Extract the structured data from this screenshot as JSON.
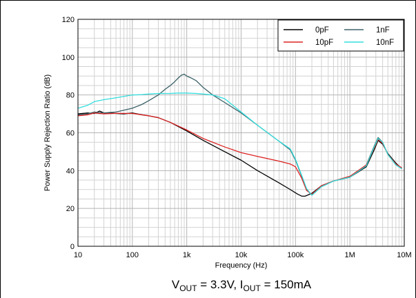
{
  "chart_data": {
    "type": "line",
    "x_scale": "log",
    "xlabel": "Frequency (Hz)",
    "ylabel": "Power Supply Rejection Ratio (dB)",
    "xlim": [
      10,
      10000000
    ],
    "ylim": [
      0,
      120
    ],
    "x_ticks": [
      {
        "value": 10,
        "label": "10"
      },
      {
        "value": 100,
        "label": "100"
      },
      {
        "value": 1000,
        "label": "1k"
      },
      {
        "value": 10000,
        "label": "10k"
      },
      {
        "value": 100000,
        "label": "100k"
      },
      {
        "value": 1000000,
        "label": "1M"
      },
      {
        "value": 10000000,
        "label": "10M"
      }
    ],
    "y_ticks": [
      0,
      20,
      40,
      60,
      80,
      100,
      120
    ],
    "grid": true,
    "legend_position": "top-right",
    "series": [
      {
        "name": "0pF",
        "color": "#000000",
        "x": [
          10,
          15,
          20,
          25,
          30,
          40,
          50,
          70,
          100,
          150,
          200,
          300,
          500,
          1000,
          2000,
          5000,
          10000,
          20000,
          50000,
          80000,
          110000,
          130000,
          150000,
          200000,
          300000,
          500000,
          1000000,
          2000000,
          2800000,
          3300000,
          4000000,
          5000000,
          7000000,
          9000000
        ],
        "y": [
          70,
          70.5,
          70.2,
          71.5,
          70.5,
          70.5,
          70.2,
          70,
          70.5,
          69.5,
          69,
          68,
          65.5,
          61,
          56,
          50,
          45.5,
          40,
          33.5,
          30,
          27.5,
          26.5,
          26.5,
          28,
          32,
          34.5,
          36.5,
          42,
          51,
          56,
          54,
          49,
          44,
          41
        ]
      },
      {
        "name": "1nF",
        "color": "#3d6268",
        "x": [
          10,
          15,
          20,
          30,
          50,
          100,
          150,
          200,
          300,
          400,
          500,
          600,
          700,
          800,
          900,
          1000,
          1200,
          1500,
          2000,
          3000,
          5000,
          10000,
          20000,
          50000,
          80000,
          100000,
          130000,
          160000,
          200000,
          300000,
          500000,
          1000000,
          2000000,
          2800000,
          3300000,
          4000000,
          5000000,
          7000000,
          9000000
        ],
        "y": [
          69.5,
          70,
          71,
          70.5,
          71,
          73,
          75,
          77,
          80,
          83,
          85,
          87,
          89,
          90.5,
          91,
          90,
          89,
          87.5,
          84,
          80,
          76,
          70.5,
          64,
          55.5,
          51,
          45.5,
          37,
          30,
          27,
          31.5,
          34.5,
          36.5,
          43,
          53,
          57.5,
          55,
          48.5,
          43,
          41
        ]
      },
      {
        "name": "10pF",
        "color": "#dd2222",
        "x": [
          10,
          15,
          20,
          30,
          50,
          100,
          200,
          300,
          500,
          1000,
          2000,
          5000,
          10000,
          20000,
          50000,
          80000,
          100000,
          130000,
          160000,
          200000,
          300000,
          500000,
          1000000,
          2000000,
          2800000,
          3300000,
          4000000,
          5000000,
          7000000,
          9000000
        ],
        "y": [
          69,
          69.5,
          70.5,
          70,
          70.3,
          70.2,
          69,
          68,
          65.5,
          61.5,
          57,
          52.5,
          49.5,
          47.5,
          45,
          43.5,
          42,
          36,
          29.5,
          27.5,
          32,
          34.5,
          37,
          43,
          52,
          56.5,
          54.5,
          48.5,
          43.5,
          41.5
        ]
      },
      {
        "name": "10nF",
        "color": "#33dddd",
        "x": [
          10,
          15,
          20,
          30,
          50,
          100,
          150,
          200,
          300,
          500,
          700,
          1000,
          1500,
          2000,
          3000,
          5000,
          10000,
          20000,
          50000,
          80000,
          100000,
          130000,
          160000,
          200000,
          300000,
          500000,
          1000000,
          2000000,
          2800000,
          3300000,
          4000000,
          5000000,
          7000000,
          9000000
        ],
        "y": [
          73,
          74.5,
          76.5,
          77.5,
          78.5,
          80,
          80.2,
          80.5,
          80.8,
          80.8,
          81,
          81,
          80.8,
          80.5,
          80,
          78,
          71,
          64,
          55.5,
          51.5,
          46,
          37.5,
          30.5,
          27,
          31.5,
          34.5,
          36.5,
          42.5,
          52.5,
          57,
          55,
          48.5,
          43,
          41
        ]
      }
    ]
  },
  "legend": {
    "entries": [
      {
        "label": "0pF",
        "color": "#000000"
      },
      {
        "label": "1nF",
        "color": "#3d6268"
      },
      {
        "label": "10pF",
        "color": "#dd2222"
      },
      {
        "label": "10nF",
        "color": "#33dddd"
      }
    ]
  },
  "caption": {
    "v_main": "V",
    "v_sub": "OUT",
    "v_value": " = 3.3V, I",
    "i_sub": "OUT",
    "i_value": " = 150mA"
  }
}
